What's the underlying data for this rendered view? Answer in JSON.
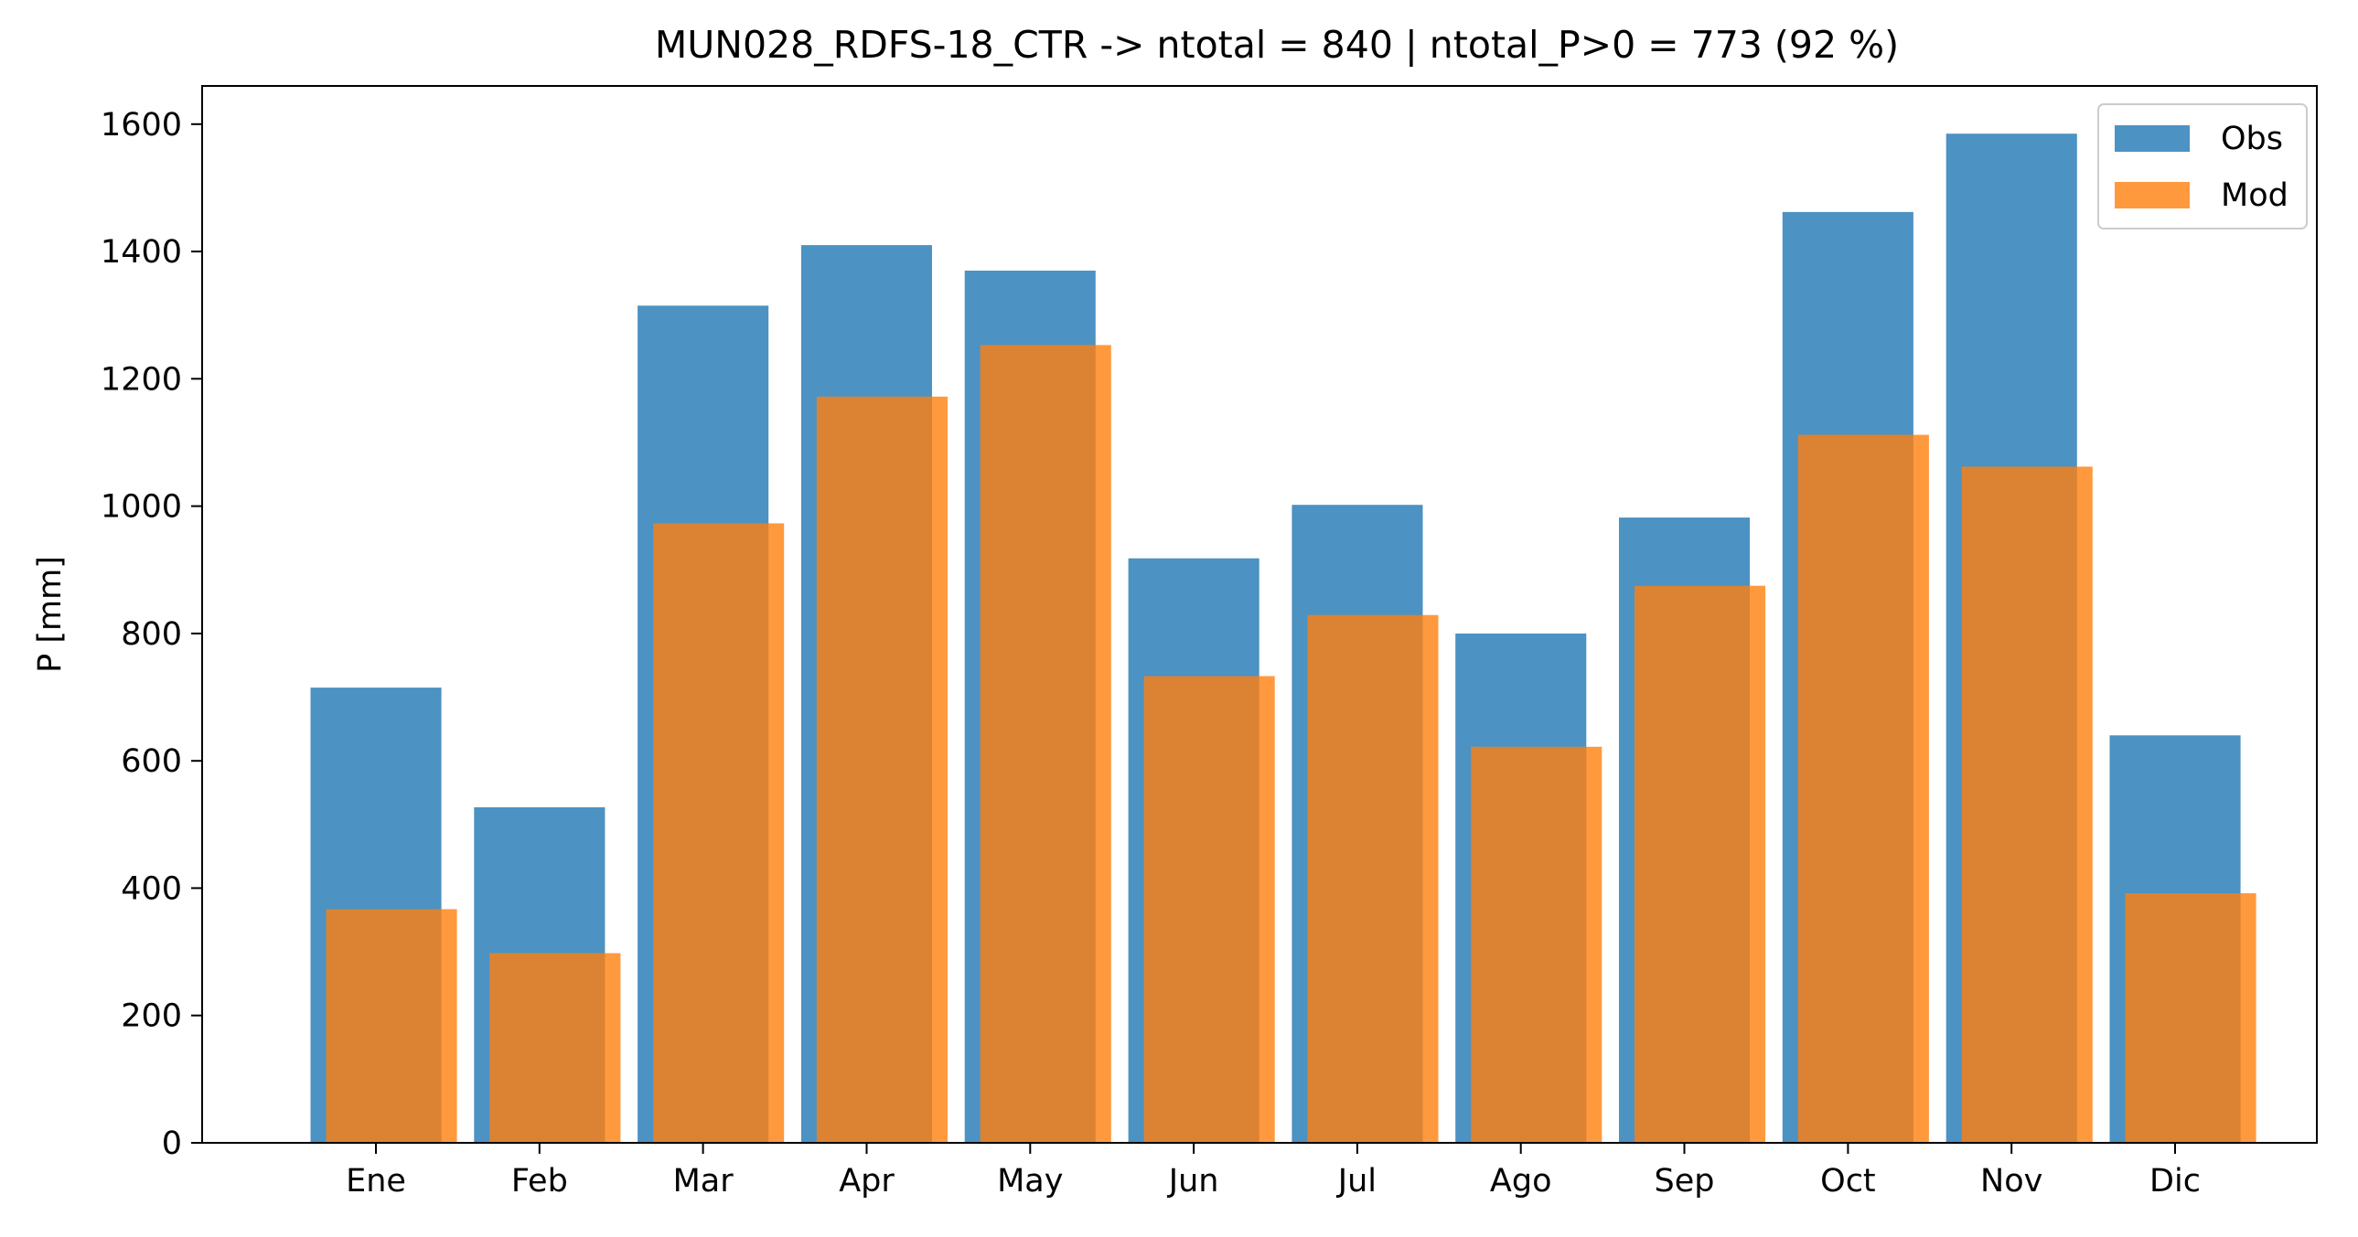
{
  "chart_data": {
    "type": "bar",
    "title": "MUN028_RDFS-18_CTR -> ntotal = 840 | ntotal_P>0 = 773 (92 %)",
    "xlabel": "",
    "ylabel": "P [mm]",
    "categories": [
      "Ene",
      "Feb",
      "Mar",
      "Apr",
      "May",
      "Jun",
      "Jul",
      "Ago",
      "Sep",
      "Oct",
      "Nov",
      "Dic"
    ],
    "series": [
      {
        "name": "Obs",
        "color": "#1f77b4",
        "values": [
          715,
          527,
          1315,
          1410,
          1370,
          918,
          1002,
          800,
          982,
          1462,
          1585,
          640
        ]
      },
      {
        "name": "Mod",
        "color": "#ff7f0e",
        "values": [
          367,
          298,
          973,
          1172,
          1253,
          733,
          829,
          622,
          875,
          1112,
          1062,
          392
        ]
      }
    ],
    "ylim": [
      0,
      1660
    ],
    "yticks": [
      0,
      200,
      400,
      600,
      800,
      1000,
      1200,
      1400,
      1600
    ],
    "grid": false,
    "legend_position": "top-right"
  }
}
